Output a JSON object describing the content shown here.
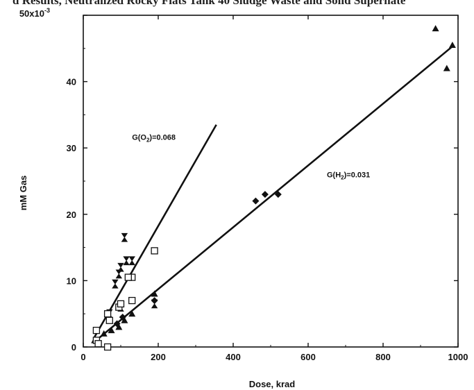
{
  "header_fragment": "d Results, Neutralized Rocky Flats Tank 40 Sludge Waste and Solid Supernate",
  "chart_data": {
    "type": "scatter",
    "title": "",
    "xlabel": "Dose, krad",
    "ylabel": "mM Gas",
    "xlim": [
      0,
      1000
    ],
    "ylim": [
      0,
      50
    ],
    "y_scale_label": "50x10",
    "y_scale_exponent": "-3",
    "xticks": [
      0,
      200,
      400,
      600,
      800,
      1000
    ],
    "yticks": [
      0,
      10,
      20,
      30,
      40
    ],
    "xtick_labels": [
      "0",
      "200",
      "400",
      "600",
      "800",
      "1000"
    ],
    "ytick_labels": [
      "0",
      "10",
      "20",
      "30",
      "40"
    ],
    "grid": false,
    "annotations": [
      {
        "text_main": "G(O",
        "text_sub": "2",
        "text_tail": ")=0.068",
        "x": 130,
        "y": 31.2
      },
      {
        "text_main": "G(H",
        "text_sub": "2",
        "text_tail": ")=0.031",
        "x": 650,
        "y": 25.6
      }
    ],
    "series": [
      {
        "marker": "triangle-filled",
        "points": [
          [
            30,
            1
          ],
          [
            55,
            2
          ],
          [
            75,
            2.5
          ],
          [
            95,
            3
          ],
          [
            110,
            4
          ],
          [
            130,
            5
          ],
          [
            190,
            8
          ],
          [
            940,
            48
          ],
          [
            985,
            45.5
          ],
          [
            970,
            42
          ]
        ]
      },
      {
        "marker": "diamond-filled",
        "points": [
          [
            460,
            22
          ],
          [
            485,
            23
          ],
          [
            520,
            23
          ],
          [
            190,
            7
          ],
          [
            90,
            3.5
          ],
          [
            105,
            4.5
          ]
        ]
      },
      {
        "marker": "hourglass-filled",
        "points": [
          [
            110,
            16.5
          ],
          [
            115,
            13
          ],
          [
            100,
            12
          ],
          [
            95,
            11
          ],
          [
            85,
            9.5
          ],
          [
            130,
            13
          ],
          [
            190,
            6.5
          ],
          [
            70,
            5
          ],
          [
            100,
            6
          ]
        ]
      },
      {
        "marker": "square-open",
        "points": [
          [
            35,
            2.5
          ],
          [
            35,
            1
          ],
          [
            40,
            0.5
          ],
          [
            65,
            0
          ],
          [
            65,
            5
          ],
          [
            70,
            4
          ],
          [
            95,
            6
          ],
          [
            100,
            6.5
          ],
          [
            130,
            7
          ],
          [
            130,
            10.5
          ],
          [
            190,
            14.5
          ],
          [
            120,
            10.5
          ]
        ]
      }
    ],
    "fit_lines": [
      {
        "name": "H2 fit",
        "x": [
          30,
          985
        ],
        "y": [
          0.8,
          45.3
        ]
      },
      {
        "name": "O2 fit",
        "x": [
          30,
          355
        ],
        "y": [
          1.5,
          33.5
        ]
      }
    ]
  }
}
